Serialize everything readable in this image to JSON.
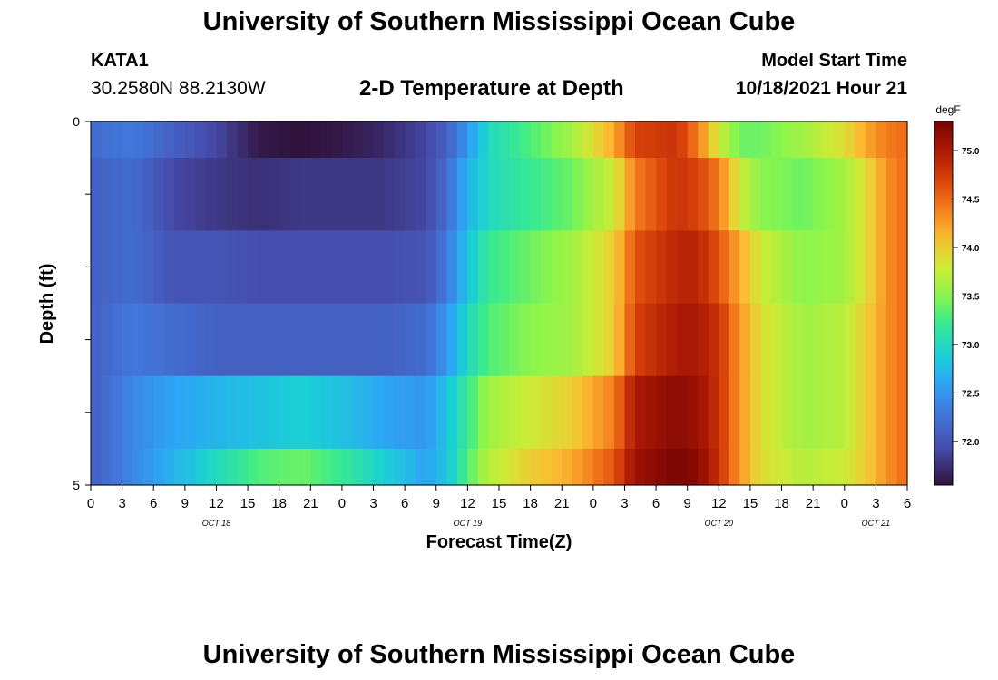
{
  "header": {
    "title": "University of Southern Mississippi Ocean Cube",
    "station": "KATA1",
    "coords": "30.2580N  88.2130W",
    "plot_title": "2-D Temperature at Depth",
    "start_label": "Model Start Time",
    "start_value": "10/18/2021 Hour 21"
  },
  "footer": {
    "title": "University of Southern Mississippi Ocean Cube"
  },
  "chart_data": {
    "type": "heatmap",
    "title": "2-D Temperature at Depth",
    "xlabel": "Forecast Time(Z)",
    "ylabel": "Depth (ft)",
    "colorbar_label": "degF",
    "colorbar_ticks": [
      "72.0",
      "72.5",
      "73.0",
      "73.5",
      "74.0",
      "74.5",
      "75.0"
    ],
    "colorbar_range": [
      71.55,
      75.3
    ],
    "y_range": [
      0,
      5
    ],
    "y_tick_labels": [
      "0",
      "5"
    ],
    "x_tick_labels": [
      "0",
      "3",
      "6",
      "9",
      "12",
      "15",
      "18",
      "21",
      "0",
      "3",
      "6",
      "9",
      "12",
      "15",
      "18",
      "21",
      "0",
      "3",
      "6",
      "9",
      "12",
      "15",
      "18",
      "21",
      "0",
      "3",
      "6"
    ],
    "date_labels": [
      "OCT 18",
      "OCT 19",
      "OCT 20",
      "OCT 21"
    ],
    "x_range_hours": [
      0,
      78
    ],
    "depth_layers": [
      "0-0.5",
      "0.5-1.5",
      "1.5-2.5",
      "2.5-3.5",
      "3.5-4.5",
      "4.5-5"
    ],
    "time_knots_hours": [
      0,
      4,
      8,
      12,
      16,
      20,
      24,
      28,
      32,
      34,
      36,
      38,
      42,
      46,
      50,
      52,
      56,
      58,
      60,
      62,
      64,
      68,
      72,
      74,
      76,
      78
    ],
    "temperature_degF": [
      [
        72.2,
        72.3,
        72.1,
        71.9,
        71.6,
        71.55,
        71.6,
        71.7,
        71.9,
        72.1,
        72.5,
        73.0,
        73.3,
        73.6,
        74.2,
        74.7,
        74.8,
        74.4,
        73.8,
        73.4,
        73.4,
        73.6,
        73.9,
        74.2,
        74.4,
        74.5
      ],
      [
        72.1,
        72.2,
        71.9,
        71.8,
        71.75,
        71.8,
        71.8,
        71.8,
        71.9,
        72.2,
        72.7,
        73.0,
        73.2,
        73.4,
        73.8,
        74.4,
        74.8,
        74.7,
        74.4,
        73.8,
        73.5,
        73.4,
        73.6,
        73.9,
        74.3,
        74.5
      ],
      [
        72.1,
        72.2,
        72.0,
        72.0,
        71.95,
        71.95,
        71.95,
        71.95,
        72.0,
        72.3,
        72.8,
        73.2,
        73.4,
        73.6,
        74.0,
        74.6,
        74.9,
        74.9,
        74.6,
        74.2,
        73.8,
        73.5,
        73.6,
        73.9,
        74.3,
        74.5
      ],
      [
        72.1,
        72.3,
        72.2,
        72.1,
        72.1,
        72.1,
        72.1,
        72.1,
        72.2,
        72.5,
        73.0,
        73.3,
        73.5,
        73.6,
        74.0,
        74.7,
        75.0,
        75.0,
        74.8,
        74.3,
        73.9,
        73.6,
        73.7,
        74.0,
        74.3,
        74.5
      ],
      [
        72.1,
        72.4,
        72.6,
        72.7,
        72.8,
        72.9,
        72.8,
        72.6,
        72.5,
        72.8,
        73.2,
        73.6,
        73.8,
        74.0,
        74.4,
        75.0,
        75.2,
        75.1,
        74.8,
        74.3,
        73.9,
        73.6,
        73.7,
        74.0,
        74.3,
        74.5
      ],
      [
        72.1,
        72.4,
        72.7,
        73.0,
        73.3,
        73.4,
        73.2,
        72.9,
        72.6,
        72.8,
        73.3,
        73.7,
        74.0,
        74.2,
        74.6,
        75.1,
        75.3,
        75.2,
        74.8,
        74.3,
        73.9,
        73.7,
        73.8,
        74.0,
        74.3,
        74.5
      ]
    ]
  }
}
